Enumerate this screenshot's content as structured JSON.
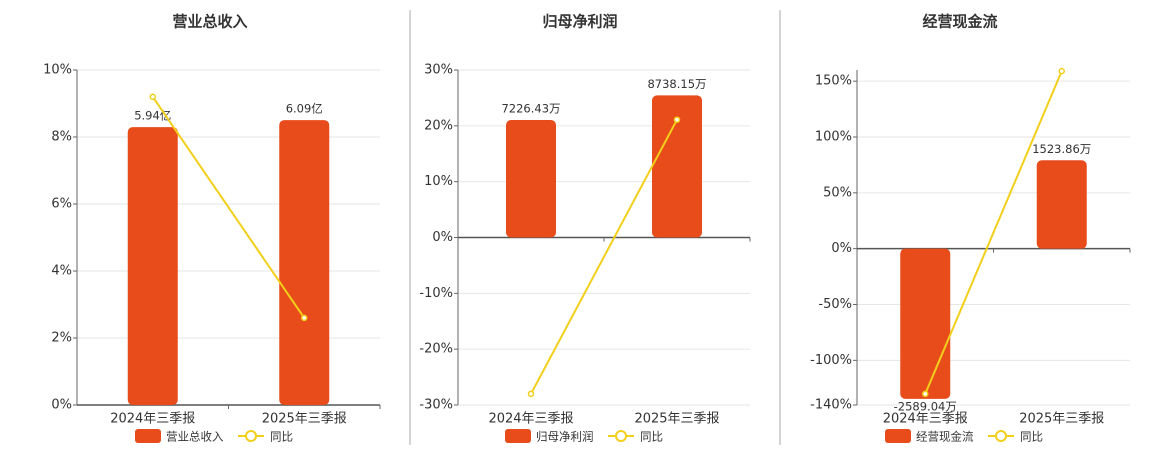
{
  "chart_data": [
    {
      "type": "bar",
      "title": "营业总收入",
      "categories": [
        "2024年三季报",
        "2025年三季报"
      ],
      "series": [
        {
          "name": "营业总收入",
          "type": "bar",
          "color": "#e84c1b",
          "axis": "y2",
          "values": [
            5.94,
            6.09
          ],
          "value_labels": [
            "5.94亿",
            "6.09亿"
          ]
        },
        {
          "name": "同比",
          "type": "line",
          "color": "#f2cf1b",
          "values": [
            9.2,
            2.6
          ]
        }
      ],
      "ylim": [
        0,
        10
      ],
      "yticks": [
        {
          "value": 0,
          "label": "0%"
        },
        {
          "value": 2,
          "label": "2%"
        },
        {
          "value": 4,
          "label": "4%"
        },
        {
          "value": 6,
          "label": "6%"
        },
        {
          "value": 8,
          "label": "8%"
        },
        {
          "value": 10,
          "label": "10%"
        }
      ],
      "y2lim": [
        0,
        7.16
      ],
      "grid": true
    },
    {
      "type": "bar",
      "title": "归母净利润",
      "categories": [
        "2024年三季报",
        "2025年三季报"
      ],
      "series": [
        {
          "name": "归母净利润",
          "type": "bar",
          "color": "#e84c1b",
          "axis": "y2",
          "values": [
            7226.43,
            8738.15
          ],
          "value_labels": [
            "7226.43万",
            "8738.15万"
          ]
        },
        {
          "name": "同比",
          "type": "line",
          "color": "#f2cf1b",
          "values": [
            -28.0,
            21.1
          ]
        }
      ],
      "ylim": [
        -30,
        30
      ],
      "yticks": [
        {
          "value": -30,
          "label": "-30%"
        },
        {
          "value": -20,
          "label": "-20%"
        },
        {
          "value": -10,
          "label": "-10%"
        },
        {
          "value": 0,
          "label": "0%"
        },
        {
          "value": 10,
          "label": "10%"
        },
        {
          "value": 20,
          "label": "20%"
        },
        {
          "value": 30,
          "label": "30%"
        }
      ],
      "y2lim": [
        -10300,
        10300
      ],
      "grid": true
    },
    {
      "type": "bar",
      "title": "经营现金流",
      "categories": [
        "2024年三季报",
        "2025年三季报"
      ],
      "series": [
        {
          "name": "经营现金流",
          "type": "bar",
          "color": "#e84c1b",
          "axis": "y2",
          "values": [
            -2589.04,
            1523.86
          ],
          "value_labels": [
            "-2589.04万",
            "1523.86万"
          ]
        },
        {
          "name": "同比",
          "type": "line",
          "color": "#f2cf1b",
          "values": [
            -130,
            159
          ]
        }
      ],
      "ylim": [
        -140,
        160
      ],
      "yticks": [
        {
          "value": -140,
          "label": "-140%"
        },
        {
          "value": -100,
          "label": "-100%"
        },
        {
          "value": -50,
          "label": "-50%"
        },
        {
          "value": 0,
          "label": "0%"
        },
        {
          "value": 50,
          "label": "50%"
        },
        {
          "value": 100,
          "label": "100%"
        },
        {
          "value": 150,
          "label": "150%"
        }
      ],
      "y2lim": [
        -2695,
        3080
      ],
      "grid": true
    }
  ]
}
